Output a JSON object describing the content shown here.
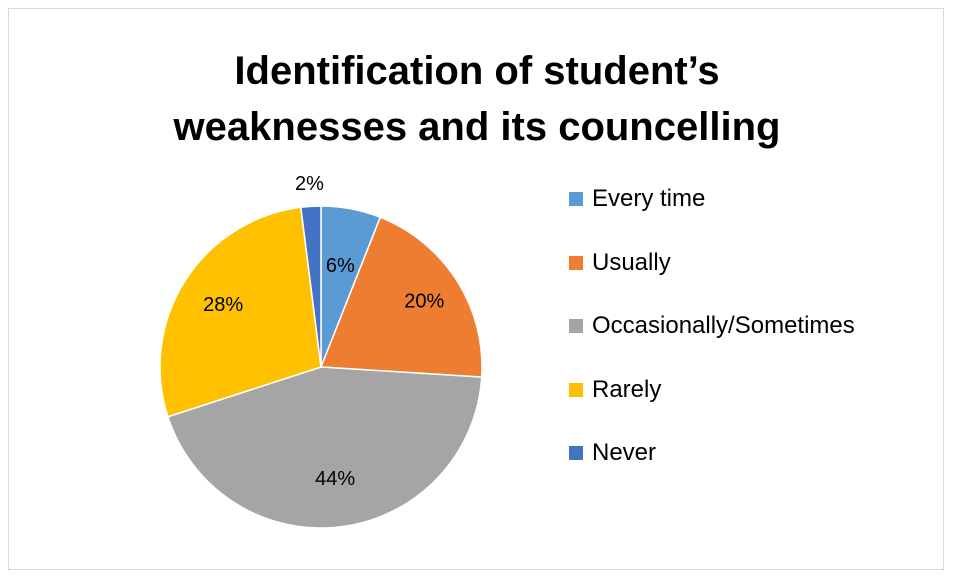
{
  "chart_data": {
    "type": "pie",
    "title": "Identification of student’s weaknesses and its councelling",
    "title_lines": [
      "Identification of student’s",
      "weaknesses and its councelling"
    ],
    "categories": [
      "Every time",
      "Usually",
      "Occasionally/Sometimes",
      "Rarely",
      "Never"
    ],
    "values": [
      6,
      20,
      44,
      28,
      2
    ],
    "labels": [
      "6%",
      "20%",
      "44%",
      "28%",
      "2%"
    ],
    "colors": [
      "#5B9BD5",
      "#ED7D31",
      "#A5A5A5",
      "#FFC000",
      "#4472C4"
    ],
    "legend_position": "right"
  }
}
